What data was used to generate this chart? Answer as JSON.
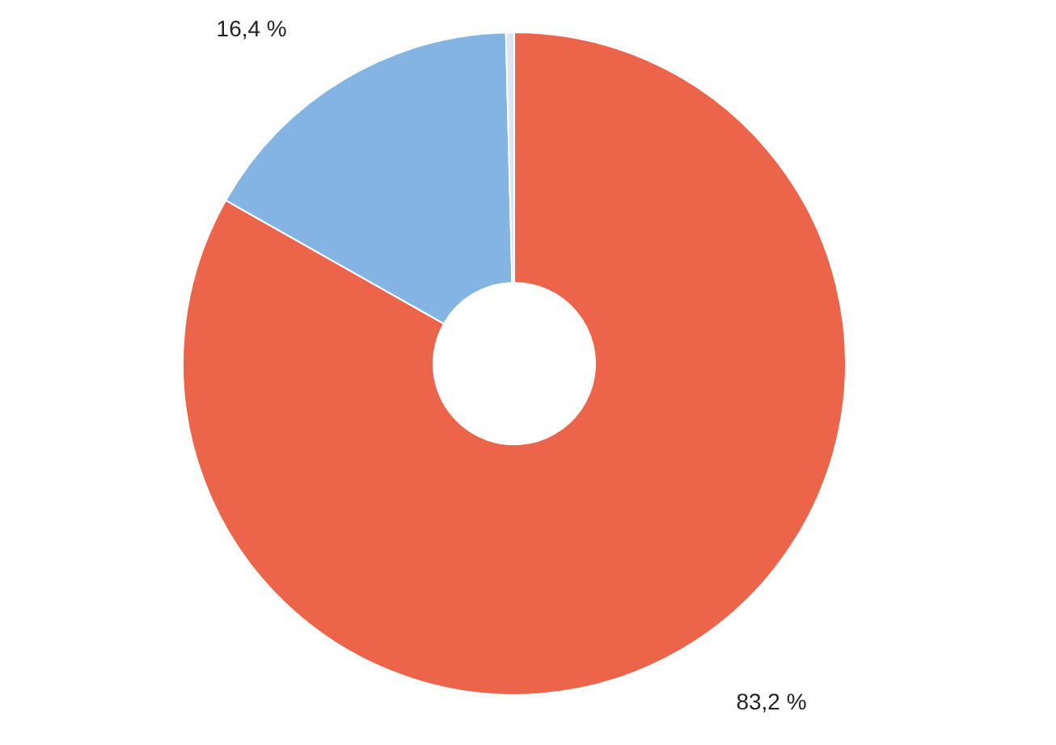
{
  "chart_data": {
    "type": "donut",
    "categories": [
      null,
      null,
      null
    ],
    "values": [
      83.2,
      16.4,
      0.4
    ],
    "colors": [
      "#ec644a",
      "#83b4e2",
      "#dde6ef"
    ],
    "value_labels": [
      "83,2 %",
      "16,4 %",
      null
    ]
  }
}
